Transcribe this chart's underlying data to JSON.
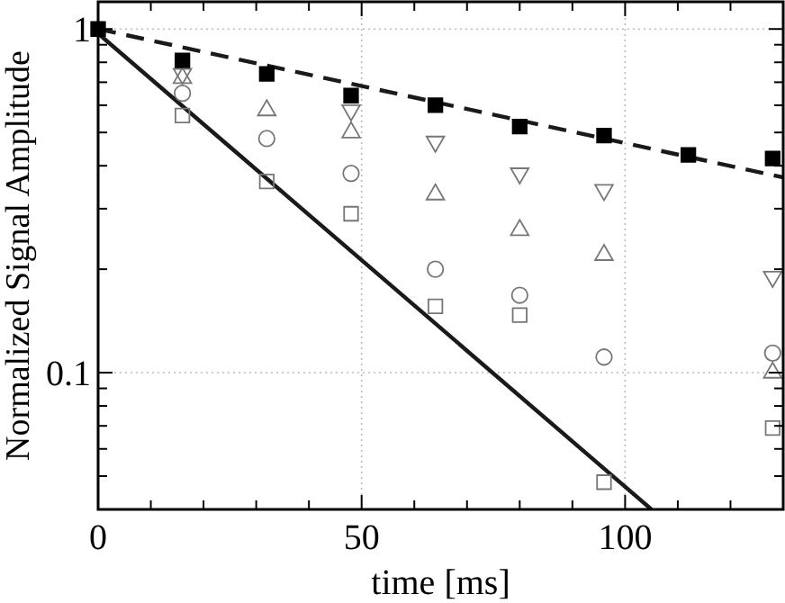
{
  "chart_data": {
    "type": "scatter",
    "xlabel": "time [ms]",
    "ylabel": "Normalized Signal Amplitude",
    "log": "y",
    "grid": true,
    "xlim": [
      0,
      130
    ],
    "ylim": [
      0.04,
      1.2
    ],
    "xticks": [
      0,
      {
        "value": 10,
        "label": null
      },
      {
        "value": 20,
        "label": null
      },
      {
        "value": 30,
        "label": null
      },
      {
        "value": 40,
        "label": null
      },
      50,
      {
        "value": 60,
        "label": null
      },
      {
        "value": 70,
        "label": null
      },
      {
        "value": 80,
        "label": null
      },
      {
        "value": 90,
        "label": null
      },
      100,
      {
        "value": 110,
        "label": null
      },
      {
        "value": 120,
        "label": null
      }
    ],
    "yticks": [
      {
        "value": 0.04,
        "label": null
      },
      {
        "value": 0.05,
        "label": null
      },
      {
        "value": 0.06,
        "label": null
      },
      {
        "value": 0.07,
        "label": null
      },
      {
        "value": 0.08,
        "label": null
      },
      {
        "value": 0.09,
        "label": null
      },
      0.1,
      {
        "value": 0.2,
        "label": null
      },
      {
        "value": 0.3,
        "label": null
      },
      {
        "value": 0.4,
        "label": null
      },
      {
        "value": 0.5,
        "label": null
      },
      {
        "value": 0.6,
        "label": null
      },
      {
        "value": 0.7,
        "label": null
      },
      {
        "value": 0.8,
        "label": null
      },
      {
        "value": 0.9,
        "label": null
      },
      1
    ],
    "series": [
      {
        "type": "line",
        "line_style": "dashed",
        "color": "#1a1a1a",
        "x": [
          0,
          130
        ],
        "values": [
          1,
          0.37
        ]
      },
      {
        "type": "line",
        "line_style": "solid",
        "color": "#1a1a1a",
        "x": [
          0,
          105
        ],
        "values": [
          0.97,
          0.04
        ]
      },
      {
        "marker": "square",
        "color": "#777777",
        "x": [
          16,
          32,
          48,
          64,
          80,
          96,
          128
        ],
        "values": [
          0.56,
          0.36,
          0.29,
          0.156,
          0.147,
          0.048,
          0.069
        ]
      },
      {
        "marker": "circle",
        "color": "#777777",
        "x": [
          16,
          32,
          48,
          64,
          80,
          96,
          128
        ],
        "values": [
          0.65,
          0.48,
          0.38,
          0.2,
          0.168,
          0.111,
          0.114
        ]
      },
      {
        "marker": "triangle",
        "color": "#777777",
        "x": [
          16,
          32,
          48,
          64,
          80,
          96,
          128
        ],
        "values": [
          0.72,
          0.58,
          0.5,
          0.33,
          0.26,
          0.22,
          0.1
        ]
      },
      {
        "marker": "triangle-down",
        "color": "#777777",
        "x": [
          16,
          48,
          64,
          80,
          96,
          128
        ],
        "values": [
          0.74,
          0.58,
          0.47,
          0.38,
          0.34,
          0.19
        ]
      },
      {
        "marker": "square",
        "color": "#000000",
        "x": [
          0,
          16,
          32,
          48,
          64,
          80,
          96,
          112,
          128
        ],
        "values": [
          1,
          0.81,
          0.74,
          0.64,
          0.6,
          0.52,
          0.49,
          0.43,
          0.42
        ]
      }
    ]
  }
}
